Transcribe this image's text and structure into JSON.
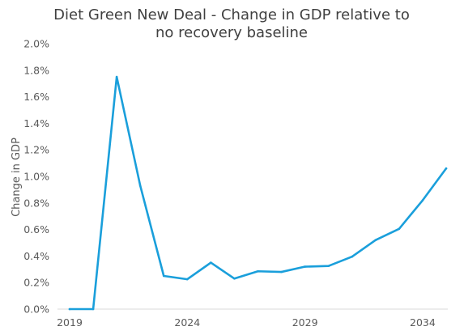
{
  "chart_data": {
    "type": "line",
    "title_lines": [
      "Diet Green New Deal - Change in GDP relative to",
      "no recovery baseline"
    ],
    "xlabel": "",
    "ylabel": "Change in GDP",
    "x": [
      2019,
      2020,
      2021,
      2022,
      2023,
      2024,
      2025,
      2026,
      2027,
      2028,
      2029,
      2030,
      2031,
      2032,
      2033,
      2034,
      2035
    ],
    "series": [
      {
        "values": [
          0.0,
          0.0,
          1.75,
          0.93,
          0.25,
          0.225,
          0.35,
          0.23,
          0.285,
          0.28,
          0.32,
          0.325,
          0.395,
          0.52,
          0.605,
          0.82,
          1.06
        ]
      }
    ],
    "xlim": [
      2019,
      2035
    ],
    "ylim": [
      0,
      2.0
    ],
    "x_ticks": [
      "2019",
      "2024",
      "2029",
      "2034"
    ],
    "x_tick_values": [
      2019,
      2024,
      2029,
      2034
    ],
    "y_ticks": [
      "0.0%",
      "0.2%",
      "0.4%",
      "0.6%",
      "0.8%",
      "1.0%",
      "1.2%",
      "1.4%",
      "1.6%",
      "1.8%",
      "2.0%"
    ],
    "y_tick_values": [
      0,
      0.2,
      0.4,
      0.6,
      0.8,
      1.0,
      1.2,
      1.4,
      1.6,
      1.8,
      2.0
    ],
    "grid": false,
    "legend": "none",
    "colors": {
      "line": "#1a9fdb",
      "axis": "#d9d9d9",
      "title": "#404040",
      "ticks": "#595959"
    }
  }
}
